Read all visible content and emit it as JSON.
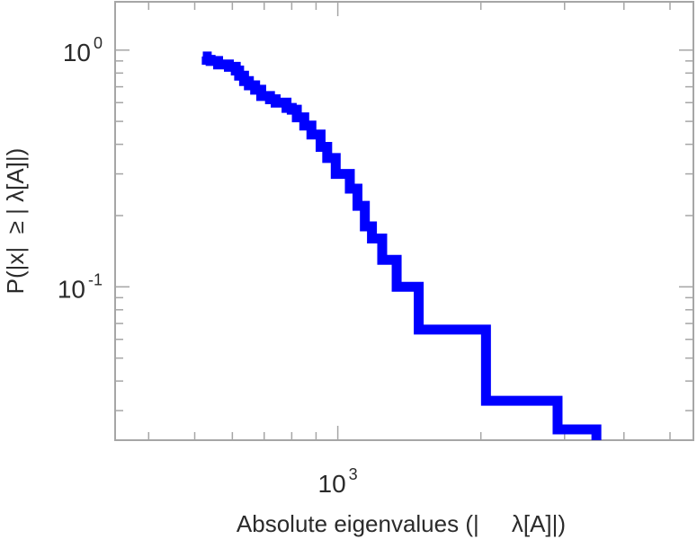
{
  "chart_data": {
    "type": "line",
    "style": "step",
    "xscale": "log",
    "yscale": "log",
    "xlim": [
      340,
      5600
    ],
    "ylim": [
      0.0225,
      1.6
    ],
    "xlabel": "Absolute eigenvalues (|     λ[A]|)",
    "ylabel": "P(|x|  ≥ | λ[A]|)",
    "xticks": [
      {
        "base": "10",
        "exp": "3",
        "value": 1000
      }
    ],
    "yticks": [
      {
        "base": "10",
        "exp": "0",
        "value": 1
      },
      {
        "base": "10",
        "exp": "-1",
        "value": 0.1
      }
    ],
    "grid": false,
    "series": [
      {
        "color": "#0000ff",
        "x": [
          520,
          530,
          540,
          560,
          590,
          610,
          620,
          635,
          650,
          670,
          690,
          720,
          740,
          780,
          800,
          820,
          850,
          880,
          920,
          950,
          990,
          1060,
          1100,
          1140,
          1180,
          1240,
          1330,
          1480,
          2050,
          2900,
          3500
        ],
        "y": [
          0.94,
          0.91,
          0.9,
          0.87,
          0.85,
          0.82,
          0.78,
          0.74,
          0.71,
          0.68,
          0.64,
          0.62,
          0.6,
          0.57,
          0.56,
          0.52,
          0.48,
          0.44,
          0.39,
          0.35,
          0.3,
          0.26,
          0.22,
          0.18,
          0.16,
          0.13,
          0.1,
          0.066,
          0.033,
          0.025,
          0.0225
        ]
      }
    ]
  }
}
